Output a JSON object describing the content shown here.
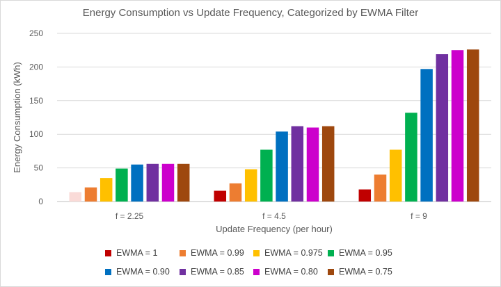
{
  "chart_data": {
    "type": "bar",
    "title": "Energy Consumption vs Update Frequency, Categorized by EWMA Filter",
    "xlabel": "Update Frequency (per hour)",
    "ylabel": "Energy Consumption (kWh)",
    "categories": [
      "f = 2.25",
      "f = 4.5",
      "f = 9"
    ],
    "ylim": [
      0,
      250
    ],
    "yticks": [
      0,
      50,
      100,
      150,
      200,
      250
    ],
    "grid": true,
    "legend_position": "bottom",
    "series": [
      {
        "name": "EWMA = 1",
        "color": "#C00000",
        "values": [
          14,
          16,
          18
        ]
      },
      {
        "name": "EWMA = 0.99",
        "color": "#ED7D31",
        "values": [
          21,
          27,
          40
        ]
      },
      {
        "name": "EWMA = 0.975",
        "color": "#FFC000",
        "values": [
          35,
          48,
          77
        ]
      },
      {
        "name": "EWMA = 0.95",
        "color": "#00B050",
        "values": [
          49,
          77,
          132
        ]
      },
      {
        "name": "EWMA = 0.90",
        "color": "#0070C0",
        "values": [
          55,
          104,
          197
        ]
      },
      {
        "name": "EWMA = 0.85",
        "color": "#7030A0",
        "values": [
          56,
          112,
          219
        ]
      },
      {
        "name": "EWMA = 0.80",
        "color": "#CC00CC",
        "values": [
          56,
          110,
          225
        ]
      },
      {
        "name": "EWMA = 0.75",
        "color": "#9E480E",
        "values": [
          56,
          112,
          226
        ]
      }
    ],
    "notes": [
      "first bar of f = 2.25 is drawn in a very light pink"
    ],
    "first_bar_color": "#FADBD8"
  }
}
